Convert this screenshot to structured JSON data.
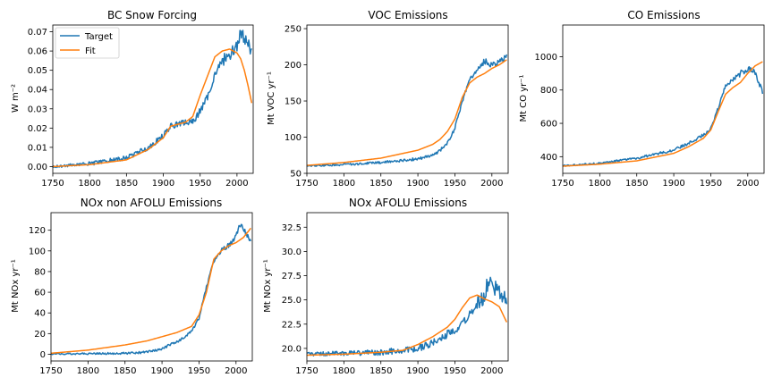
{
  "figure": {
    "series_names": [
      "Target",
      "Fit"
    ],
    "colors": {
      "target": "#1f77b4",
      "fit": "#ff7f0e"
    }
  },
  "chart_data": [
    {
      "type": "line",
      "title": "BC Snow Forcing",
      "ylabel": "W m⁻²",
      "xlim": [
        1750,
        2022
      ],
      "ylim": [
        -0.0035,
        0.0735
      ],
      "xticks": [
        1750,
        1800,
        1850,
        1900,
        1950,
        2000
      ],
      "yticks": [
        0,
        0.01,
        0.02,
        0.03,
        0.04,
        0.05,
        0.06,
        0.07
      ],
      "ytick_labels": [
        "0.00",
        "0.01",
        "0.02",
        "0.03",
        "0.04",
        "0.05",
        "0.06",
        "0.07"
      ],
      "legend": "upper-left",
      "series": [
        {
          "name": "Target",
          "noise": 0.0018,
          "points": [
            [
              1750,
              0
            ],
            [
              1800,
              0.0015
            ],
            [
              1850,
              0.0045
            ],
            [
              1880,
              0.01
            ],
            [
              1900,
              0.016
            ],
            [
              1910,
              0.021
            ],
            [
              1920,
              0.022
            ],
            [
              1930,
              0.023
            ],
            [
              1940,
              0.023
            ],
            [
              1950,
              0.029
            ],
            [
              1960,
              0.036
            ],
            [
              1970,
              0.048
            ],
            [
              1980,
              0.055
            ],
            [
              1990,
              0.058
            ],
            [
              2000,
              0.063
            ],
            [
              2005,
              0.069
            ],
            [
              2010,
              0.067
            ],
            [
              2015,
              0.064
            ],
            [
              2020,
              0.06
            ]
          ]
        },
        {
          "name": "Fit",
          "noise": 0,
          "points": [
            [
              1750,
              0
            ],
            [
              1800,
              0.001
            ],
            [
              1850,
              0.0035
            ],
            [
              1880,
              0.009
            ],
            [
              1900,
              0.015
            ],
            [
              1910,
              0.021
            ],
            [
              1920,
              0.022
            ],
            [
              1930,
              0.023
            ],
            [
              1940,
              0.026
            ],
            [
              1950,
              0.037
            ],
            [
              1960,
              0.047
            ],
            [
              1970,
              0.057
            ],
            [
              1980,
              0.06
            ],
            [
              1990,
              0.061
            ],
            [
              2000,
              0.059
            ],
            [
              2005,
              0.056
            ],
            [
              2010,
              0.05
            ],
            [
              2015,
              0.042
            ],
            [
              2020,
              0.033
            ]
          ]
        }
      ]
    },
    {
      "type": "line",
      "title": "VOC Emissions",
      "ylabel": "Mt VOC yr⁻¹",
      "xlim": [
        1750,
        2022
      ],
      "ylim": [
        50,
        255
      ],
      "xticks": [
        1750,
        1800,
        1850,
        1900,
        1950,
        2000
      ],
      "yticks": [
        50,
        100,
        150,
        200,
        250
      ],
      "ytick_labels": [
        "50",
        "100",
        "150",
        "200",
        "250"
      ],
      "series": [
        {
          "name": "Target",
          "noise": 2.5,
          "points": [
            [
              1750,
              60
            ],
            [
              1800,
              62
            ],
            [
              1850,
              65
            ],
            [
              1900,
              70
            ],
            [
              1920,
              75
            ],
            [
              1930,
              82
            ],
            [
              1940,
              92
            ],
            [
              1950,
              112
            ],
            [
              1960,
              150
            ],
            [
              1970,
              180
            ],
            [
              1980,
              192
            ],
            [
              1990,
              205
            ],
            [
              2000,
              200
            ],
            [
              2010,
              205
            ],
            [
              2020,
              210
            ]
          ]
        },
        {
          "name": "Fit",
          "noise": 0,
          "points": [
            [
              1750,
              61
            ],
            [
              1800,
              65
            ],
            [
              1850,
              71
            ],
            [
              1900,
              82
            ],
            [
              1920,
              90
            ],
            [
              1930,
              97
            ],
            [
              1940,
              108
            ],
            [
              1950,
              125
            ],
            [
              1960,
              155
            ],
            [
              1970,
              175
            ],
            [
              1980,
              183
            ],
            [
              1990,
              188
            ],
            [
              2000,
              195
            ],
            [
              2010,
              200
            ],
            [
              2020,
              207
            ]
          ]
        }
      ]
    },
    {
      "type": "line",
      "title": "CO Emissions",
      "ylabel": "Mt CO yr⁻¹",
      "xlim": [
        1750,
        2022
      ],
      "ylim": [
        300,
        1190
      ],
      "xticks": [
        1750,
        1800,
        1850,
        1900,
        1950,
        2000
      ],
      "yticks": [
        400,
        600,
        800,
        1000
      ],
      "ytick_labels": [
        "400",
        "600",
        "800",
        "1000"
      ],
      "series": [
        {
          "name": "Target",
          "noise": 10,
          "points": [
            [
              1750,
              345
            ],
            [
              1800,
              360
            ],
            [
              1850,
              390
            ],
            [
              1900,
              440
            ],
            [
              1920,
              480
            ],
            [
              1940,
              530
            ],
            [
              1950,
              570
            ],
            [
              1960,
              690
            ],
            [
              1970,
              830
            ],
            [
              1980,
              860
            ],
            [
              1990,
              900
            ],
            [
              2000,
              930
            ],
            [
              2005,
              920
            ],
            [
              2010,
              900
            ],
            [
              2015,
              850
            ],
            [
              2020,
              780
            ]
          ]
        },
        {
          "name": "Fit",
          "noise": 0,
          "points": [
            [
              1750,
              343
            ],
            [
              1800,
              355
            ],
            [
              1850,
              375
            ],
            [
              1900,
              420
            ],
            [
              1920,
              460
            ],
            [
              1940,
              510
            ],
            [
              1950,
              560
            ],
            [
              1960,
              670
            ],
            [
              1970,
              775
            ],
            [
              1980,
              815
            ],
            [
              1990,
              845
            ],
            [
              2000,
              900
            ],
            [
              2010,
              945
            ],
            [
              2020,
              970
            ]
          ]
        }
      ]
    },
    {
      "type": "line",
      "title": "NOx non AFOLU Emissions",
      "ylabel": "Mt NOx yr⁻¹",
      "xlim": [
        1750,
        2022
      ],
      "ylim": [
        -6.5,
        137
      ],
      "xticks": [
        1750,
        1800,
        1850,
        1900,
        1950,
        2000
      ],
      "yticks": [
        0,
        20,
        40,
        60,
        80,
        100,
        120
      ],
      "ytick_labels": [
        "0",
        "20",
        "40",
        "60",
        "80",
        "100",
        "120"
      ],
      "series": [
        {
          "name": "Target",
          "noise": 1.5,
          "points": [
            [
              1750,
              0.3
            ],
            [
              1800,
              0.5
            ],
            [
              1850,
              1
            ],
            [
              1880,
              2
            ],
            [
              1900,
              5
            ],
            [
              1910,
              9
            ],
            [
              1920,
              12
            ],
            [
              1930,
              16
            ],
            [
              1940,
              22
            ],
            [
              1950,
              35
            ],
            [
              1960,
              65
            ],
            [
              1970,
              90
            ],
            [
              1980,
              100
            ],
            [
              1990,
              105
            ],
            [
              2000,
              115
            ],
            [
              2005,
              125
            ],
            [
              2010,
              122
            ],
            [
              2015,
              115
            ],
            [
              2020,
              108
            ]
          ]
        },
        {
          "name": "Fit",
          "noise": 0,
          "points": [
            [
              1750,
              1
            ],
            [
              1800,
              4
            ],
            [
              1850,
              9
            ],
            [
              1880,
              13
            ],
            [
              1900,
              17
            ],
            [
              1920,
              21
            ],
            [
              1930,
              24
            ],
            [
              1940,
              27
            ],
            [
              1950,
              38
            ],
            [
              1960,
              60
            ],
            [
              1970,
              92
            ],
            [
              1980,
              100
            ],
            [
              1990,
              105
            ],
            [
              2000,
              108
            ],
            [
              2010,
              113
            ],
            [
              2020,
              122
            ]
          ]
        }
      ]
    },
    {
      "type": "line",
      "title": "NOx AFOLU Emissions",
      "ylabel": "Mt NOx yr⁻¹",
      "xlim": [
        1750,
        2022
      ],
      "ylim": [
        18.7,
        34.0
      ],
      "xticks": [
        1750,
        1800,
        1850,
        1900,
        1950,
        2000
      ],
      "yticks": [
        20.0,
        22.5,
        25.0,
        27.5,
        30.0,
        32.5
      ],
      "ytick_labels": [
        "20.0",
        "22.5",
        "25.0",
        "27.5",
        "30.0",
        "32.5"
      ],
      "series": [
        {
          "name": "Target",
          "noise": 0.45,
          "points": [
            [
              1750,
              19.4
            ],
            [
              1800,
              19.5
            ],
            [
              1850,
              19.6
            ],
            [
              1900,
              20.0
            ],
            [
              1920,
              20.5
            ],
            [
              1940,
              21.5
            ],
            [
              1950,
              22.0
            ],
            [
              1960,
              22.5
            ],
            [
              1970,
              23.5
            ],
            [
              1980,
              24.5
            ],
            [
              1990,
              25.5
            ],
            [
              1995,
              27.0
            ],
            [
              2000,
              26.5
            ],
            [
              2010,
              26.0
            ],
            [
              2020,
              25.0
            ]
          ]
        },
        {
          "name": "Fit",
          "noise": 0,
          "points": [
            [
              1750,
              19.3
            ],
            [
              1800,
              19.4
            ],
            [
              1850,
              19.6
            ],
            [
              1880,
              19.8
            ],
            [
              1900,
              20.4
            ],
            [
              1920,
              21.2
            ],
            [
              1940,
              22.2
            ],
            [
              1950,
              23.0
            ],
            [
              1960,
              24.2
            ],
            [
              1970,
              25.2
            ],
            [
              1980,
              25.5
            ],
            [
              1990,
              25.1
            ],
            [
              2000,
              24.8
            ],
            [
              2010,
              24.3
            ],
            [
              2015,
              23.5
            ],
            [
              2020,
              22.7
            ]
          ]
        }
      ]
    }
  ]
}
